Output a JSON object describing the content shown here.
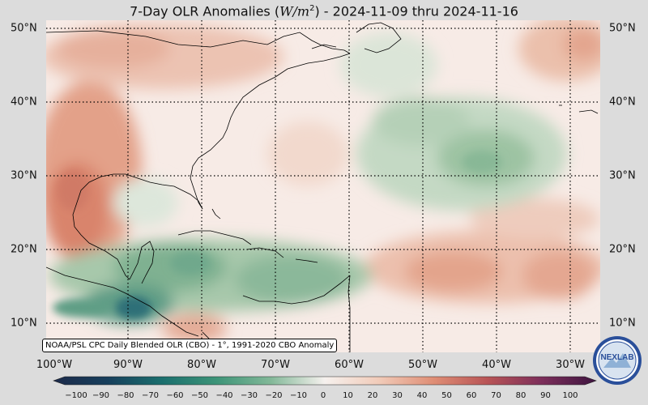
{
  "title": {
    "prefix": "7-Day OLR Anomalies (",
    "unit": "W/m",
    "sup": "2",
    "suffix": ") - 2024-11-09 thru 2024-11-16"
  },
  "credit": "NOAA/PSL CPC Daily Blended OLR (CBO) - 1°, 1991-2020 CBO Anomaly",
  "lon_labels": [
    "100°W",
    "90°W",
    "80°W",
    "70°W",
    "60°W",
    "50°W",
    "40°W",
    "30°W"
  ],
  "lat_labels_left": [
    "50°N",
    "40°N",
    "30°N",
    "20°N",
    "10°N"
  ],
  "lat_labels_right": [
    "50°N",
    "40°N",
    "30°N",
    "20°N",
    "10°N"
  ],
  "colorbar": {
    "ticks": [
      "−100",
      "−90",
      "−80",
      "−70",
      "−60",
      "−50",
      "−40",
      "−30",
      "−20",
      "−10",
      "0",
      "10",
      "20",
      "30",
      "40",
      "50",
      "60",
      "70",
      "80",
      "90",
      "100"
    ],
    "colors": [
      "#1c2a4a",
      "#173f5c",
      "#175a6b",
      "#1b6f6e",
      "#258470",
      "#3d9478",
      "#5fa585",
      "#82b898",
      "#a6cbad",
      "#cddfd0",
      "#f4f1ee",
      "#f7e4dc",
      "#f1cbb9",
      "#e9ad94",
      "#df8e75",
      "#cf6e5c",
      "#b85456",
      "#9c3f5a",
      "#7c2e5a",
      "#5e2252",
      "#3e1540"
    ]
  },
  "logo_text": "NEXLAB"
}
